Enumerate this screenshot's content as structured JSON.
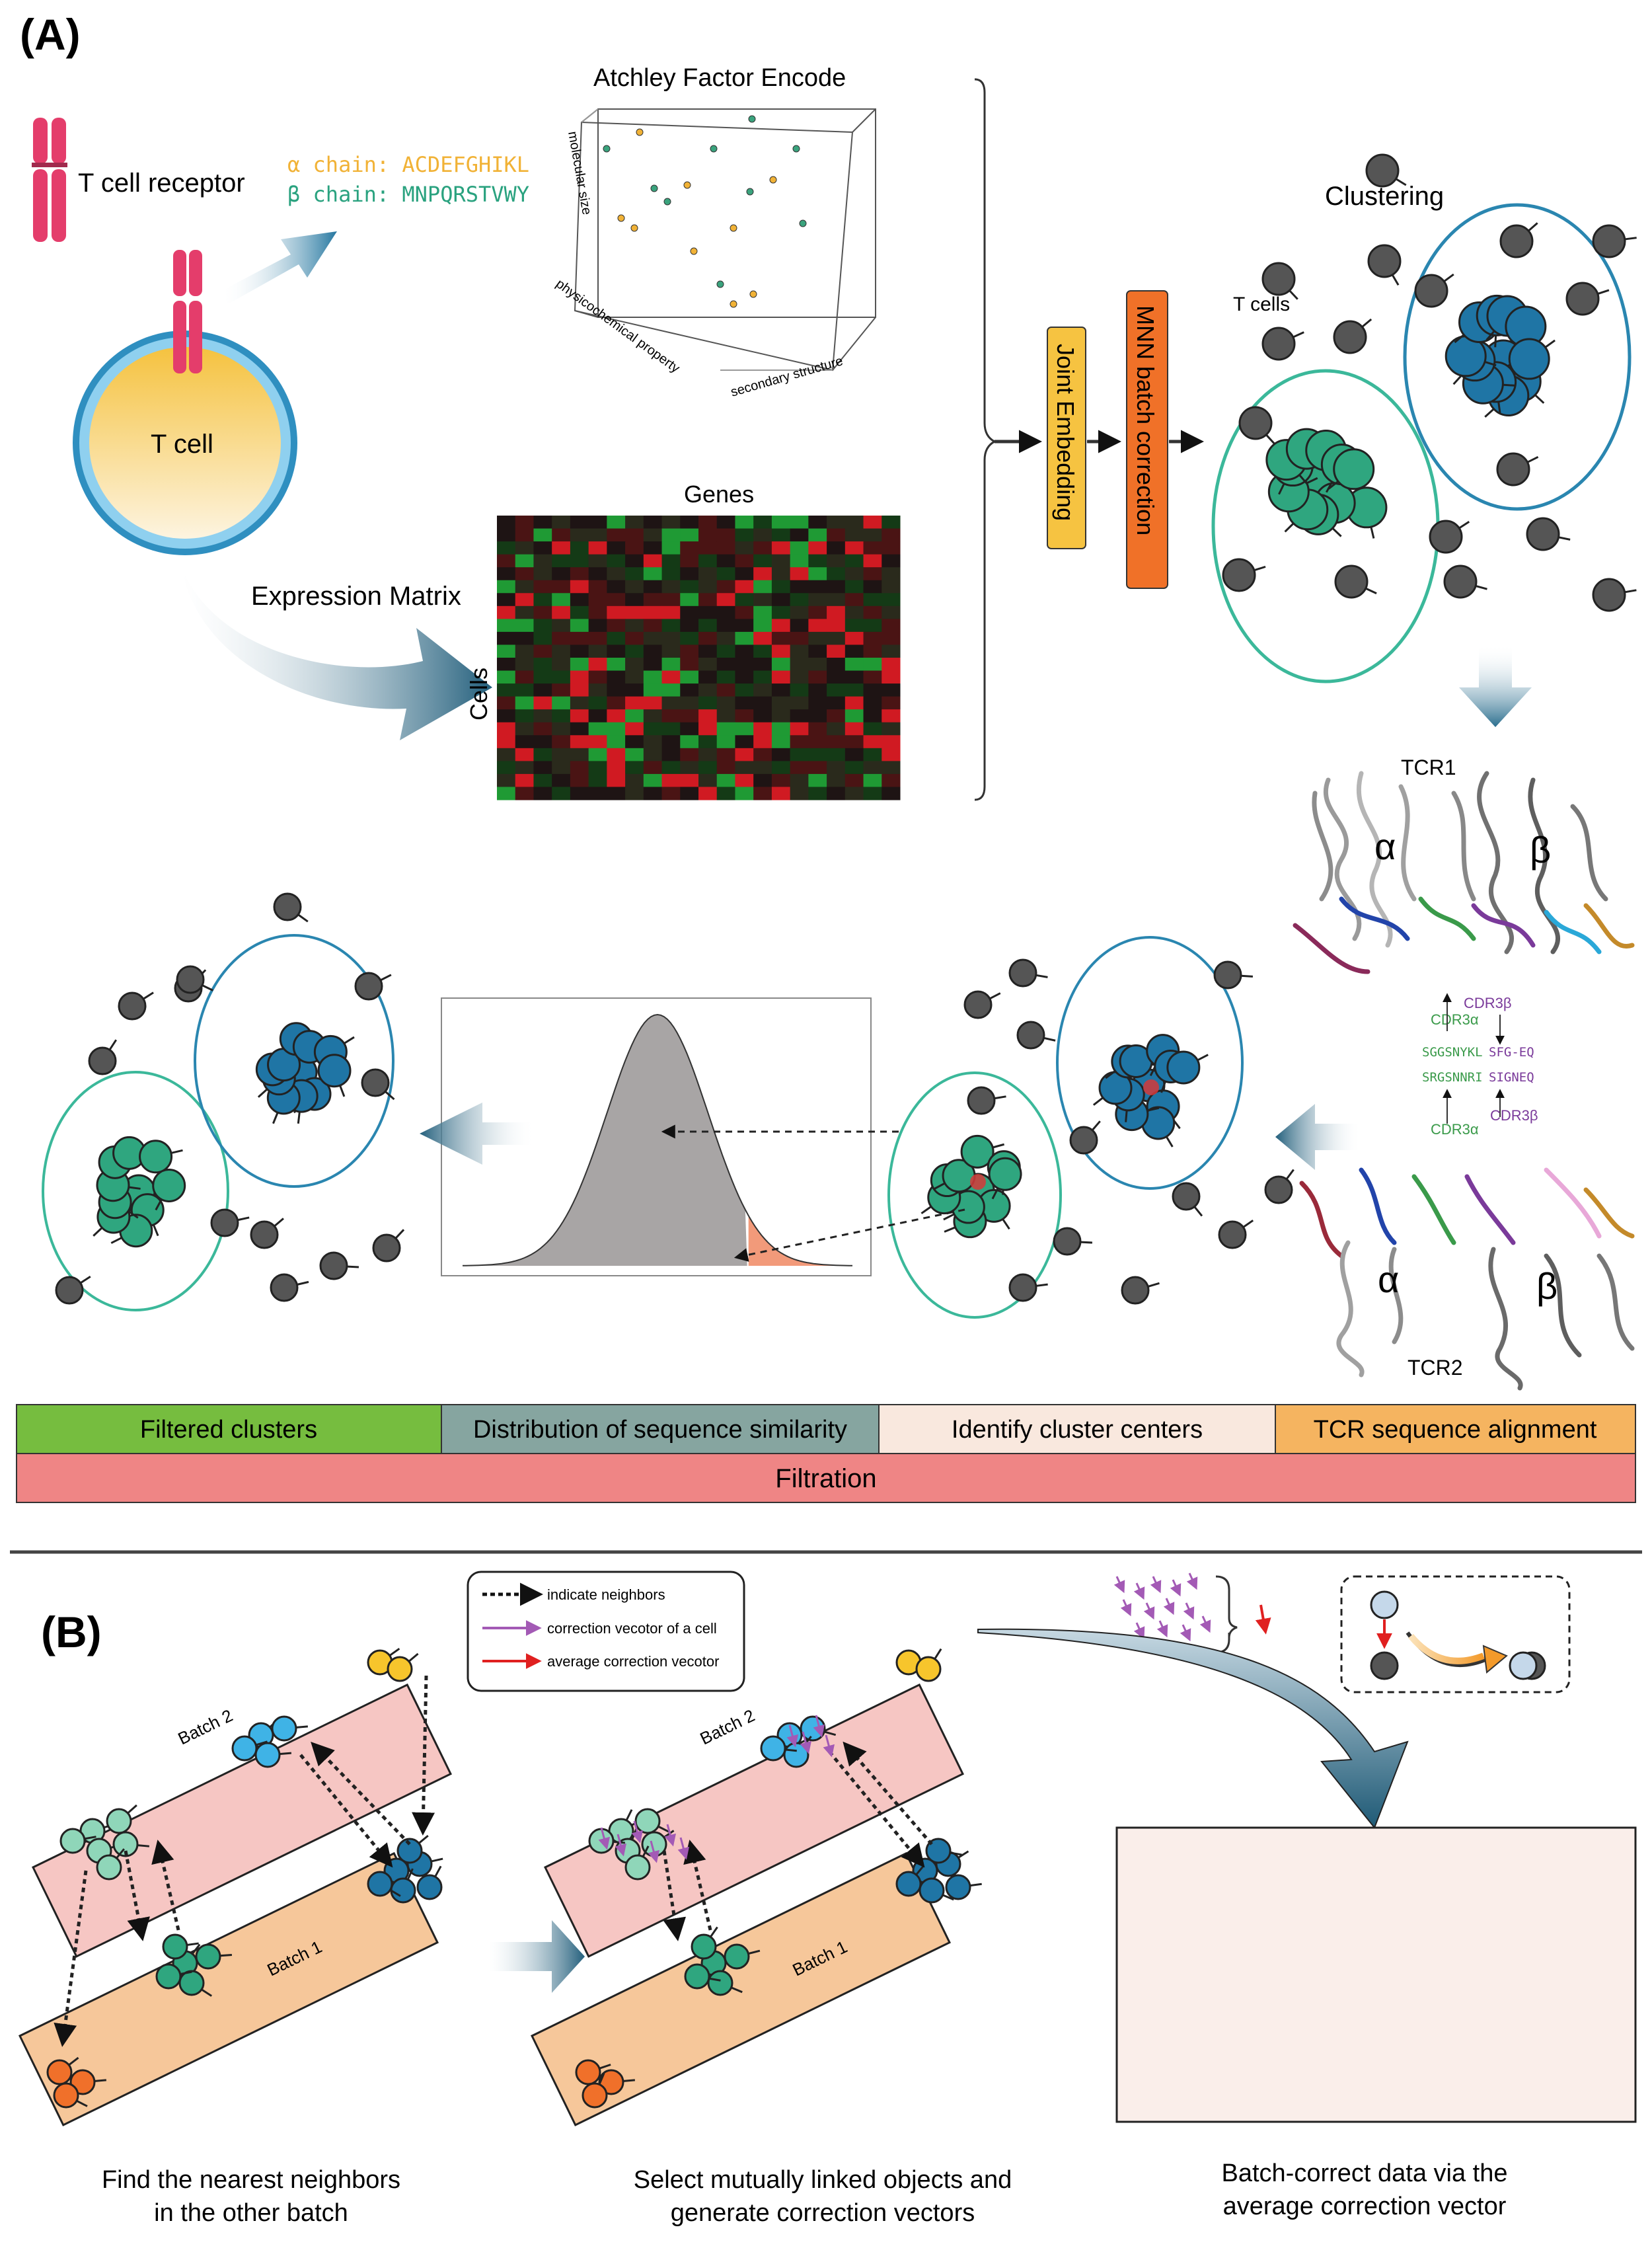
{
  "panel_a": {
    "label": "(A)",
    "tcr_label": "T cell receptor",
    "tcell_label": "T cell",
    "alpha_chain": "α chain: ACDEFGHIKL",
    "beta_chain": "β chain: MNPQRSTVWY",
    "atchley_title": "Atchley Factor Encode",
    "axis_molecular": "molecular size",
    "axis_physico": "physicochemical property",
    "axis_secondary": "secondary structure",
    "expression_label": "Expression Matrix",
    "genes_label": "Genes",
    "cells_label": "Cells",
    "joint_embedding": "Joint Embedding",
    "mnn_correction": "MNN batch correction",
    "clustering": "Clustering",
    "tcells_label": "T cells",
    "tcr1": "TCR1",
    "tcr2": "TCR2",
    "alpha": "α",
    "beta": "β",
    "cdr3b_top": "CDR3β",
    "cdr3a_top": "CDR3α",
    "cdr3a_bottom": "CDR3α",
    "cdr3b_bottom": "CDR3β",
    "seq1a": "SGGSNYKL",
    "seq1b": "SFG-EQ",
    "seq2a": "SRGSNNRI",
    "seq2b": "SIGNEQ",
    "pipeline": {
      "steps": [
        "Filtered clusters",
        "Distribution of sequence similarity",
        "Identify cluster centers",
        "TCR sequence alignment"
      ],
      "filtration": "Filtration",
      "colors": [
        "#76bd3f",
        "#86a5a0",
        "#f9e8de",
        "#f5b460"
      ],
      "filtration_color": "#ef8585"
    }
  },
  "panel_b": {
    "label": "(B)",
    "legend": [
      "indicate neighbors",
      "correction vecotor of a cell",
      "average correction vecotor"
    ],
    "batch1": "Batch 1",
    "batch2": "Batch 2",
    "caption1_line1": "Find the nearest neighbors",
    "caption1_line2": "in the other batch",
    "caption2_line1": "Select mutually linked objects and",
    "caption2_line2": "generate correction vectors",
    "caption3_line1": "Batch-correct data via the",
    "caption3_line2": "average correction vector"
  },
  "colors": {
    "teal_cell": "#2fa67f",
    "blue_cell": "#1f75a5",
    "grey_cell": "#555555",
    "teal_ring": "#3bb89a",
    "blue_ring": "#2a86b0",
    "alpha_seq": "#f1b236",
    "beta_seq": "#2aa27f",
    "tcr_pink": "#e43d6b",
    "mnn_orange": "#f07128",
    "joint_yellow": "#f6c341",
    "batch1_fill": "#f6c79a",
    "batch2_fill": "#f6c6c3",
    "light_blue_cell": "#3fb3e6",
    "light_teal_cell": "#8fd6b9",
    "orange_cell": "#f0702a",
    "yellow_cell": "#f7c52c"
  }
}
